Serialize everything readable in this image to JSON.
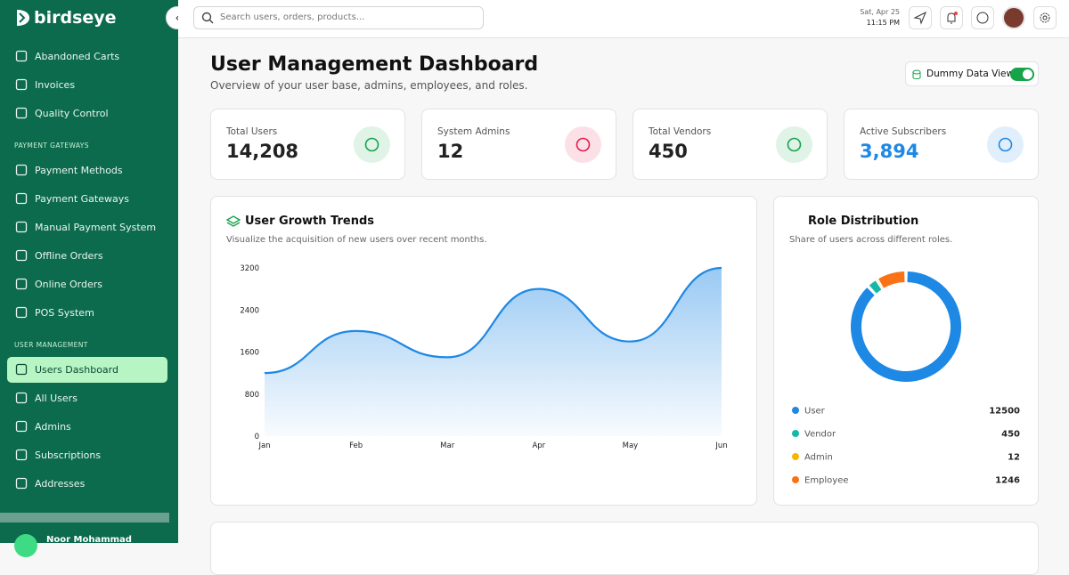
{
  "sidebar": {
    "brand": "birdseye",
    "sections": [
      {
        "label": null,
        "items": [
          "Abandoned Carts",
          "Invoices",
          "Quality Control"
        ]
      },
      {
        "label": "PAYMENT GATEWAYS",
        "items": [
          "Payment Methods",
          "Payment Gateways",
          "Manual Payment System",
          "Offline Orders",
          "Online Orders",
          "POS System"
        ]
      },
      {
        "label": "USER MANAGEMENT",
        "items": [
          "Users Dashboard",
          "All Users",
          "Admins",
          "Subscriptions",
          "Addresses"
        ]
      }
    ],
    "active": "Users Dashboard",
    "user": "Noor Mohammad"
  },
  "header": {
    "search_placeholder": "Search users, orders, products...",
    "date": "Sat, Apr 25",
    "time": "11:15 PM"
  },
  "page": {
    "title": "User Management Dashboard",
    "subtitle": "Overview of your user base, admins, employees, and roles.",
    "toggle_label": "Dummy Data View",
    "toggle_on": true
  },
  "stats": [
    {
      "label": "Total Users",
      "value": "14,208",
      "color": "#16a34a"
    },
    {
      "label": "System Admins",
      "value": "12",
      "color": "#e11d48"
    },
    {
      "label": "Total Vendors",
      "value": "450",
      "color": "#16a34a"
    },
    {
      "label": "Active Subscribers",
      "value": "3,894",
      "color": "#1e88e5"
    }
  ],
  "growth": {
    "type": "line",
    "title": "User Growth Trends",
    "subtitle": "Visualize the acquisition of new users over recent months.",
    "categories": [
      "Jan",
      "Feb",
      "Mar",
      "Apr",
      "May",
      "Jun"
    ],
    "values": [
      1200,
      2000,
      1500,
      2800,
      1800,
      3200
    ],
    "ylim": [
      0,
      3200
    ],
    "yticks": [
      0,
      800,
      1600,
      2400,
      3200
    ],
    "color": "#1e88e5"
  },
  "roles": {
    "type": "pie",
    "title": "Role Distribution",
    "subtitle": "Share of users across different roles.",
    "categories": [
      "User",
      "Vendor",
      "Admin",
      "Employee"
    ],
    "values": [
      12500,
      450,
      12,
      1246
    ],
    "colors": [
      "#1e88e5",
      "#14b8a6",
      "#f5b700",
      "#f97316"
    ]
  }
}
